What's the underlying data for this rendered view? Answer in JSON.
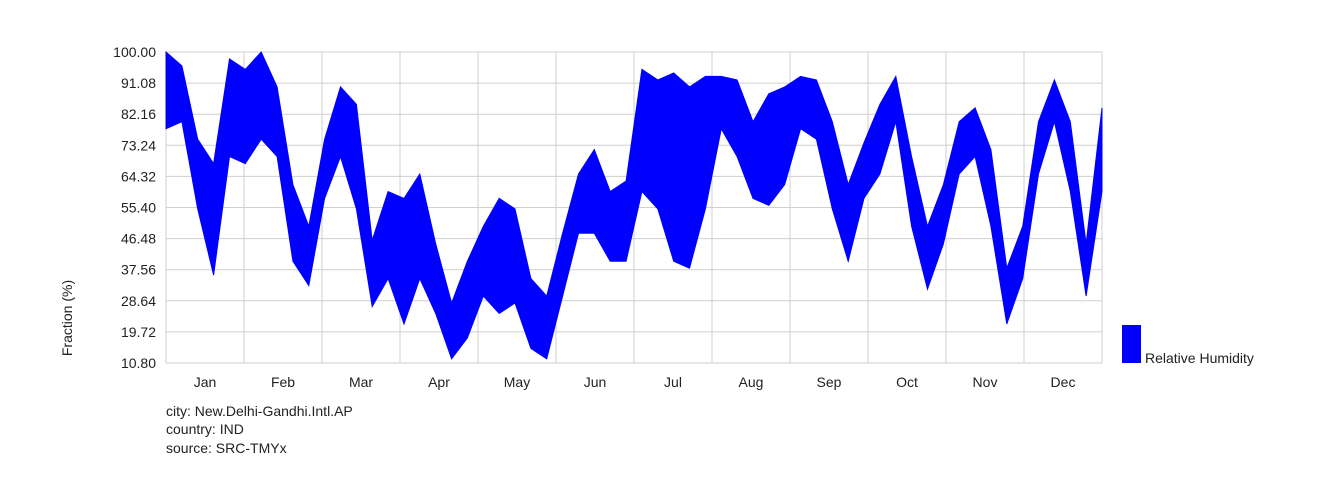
{
  "chart_data": {
    "type": "band",
    "y_label": "Fraction (%)",
    "categories": [
      null,
      null,
      "Jan",
      null,
      null,
      null,
      null,
      "Feb",
      null,
      null,
      null,
      null,
      "Mar",
      null,
      null,
      null,
      null,
      "Apr",
      null,
      null,
      null,
      null,
      "May",
      null,
      null,
      null,
      null,
      "Jun",
      null,
      null,
      null,
      null,
      "Jul",
      null,
      null,
      null,
      null,
      "Aug",
      null,
      null,
      null,
      null,
      "Sep",
      null,
      null,
      null,
      null,
      "Oct",
      null,
      null,
      null,
      null,
      "Nov",
      null,
      null,
      null,
      null,
      "Dec",
      null,
      null
    ],
    "series": [
      {
        "name": "Relative Humidity",
        "color": "#0000ff",
        "high": [
          100,
          96,
          75,
          68,
          98,
          95,
          100,
          90,
          62,
          50,
          75,
          90,
          85,
          46,
          60,
          58,
          65,
          45,
          28,
          40,
          50,
          58,
          55,
          35,
          30,
          48,
          65,
          72,
          60,
          63,
          95,
          92,
          94,
          90,
          93,
          93,
          92,
          80,
          88,
          90,
          93,
          92,
          80,
          62,
          74,
          85,
          93,
          70,
          50,
          62,
          80,
          84,
          72,
          38,
          50,
          80,
          92,
          80,
          45,
          84
        ],
        "low": [
          78,
          80,
          55,
          36,
          70,
          68,
          75,
          70,
          40,
          33,
          58,
          70,
          55,
          27,
          35,
          22,
          35,
          25,
          12,
          18,
          30,
          25,
          28,
          15,
          12,
          30,
          48,
          48,
          40,
          40,
          60,
          55,
          40,
          38,
          55,
          78,
          70,
          58,
          56,
          62,
          78,
          75,
          55,
          40,
          58,
          65,
          80,
          50,
          32,
          45,
          65,
          70,
          50,
          22,
          35,
          65,
          80,
          60,
          30,
          60
        ]
      }
    ],
    "ylim": [
      10.8,
      100
    ],
    "yticks": [
      {
        "value": 10.8,
        "label": "10.80"
      },
      19.72,
      28.64,
      37.56,
      46.48,
      {
        "value": 55.4,
        "label": "55.40"
      },
      64.32,
      73.24,
      82.16,
      91.08,
      {
        "value": 100,
        "label": "100.00"
      }
    ],
    "grid": true,
    "notes": [
      "city: New.Delhi-Gandhi.Intl.AP",
      "country: IND",
      "source: SRC-TMYx"
    ]
  }
}
